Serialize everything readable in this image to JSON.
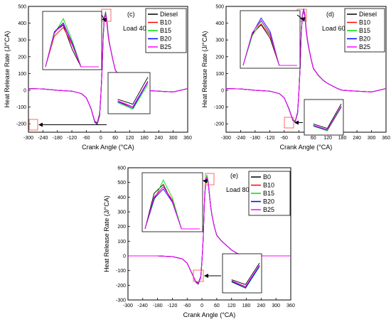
{
  "colors": {
    "Diesel": "#000000",
    "B0": "#000000",
    "B10": "#ff0000",
    "B15": "#00dd00",
    "B20": "#0000ff",
    "B25": "#ff00ff",
    "highlight": "#ff4444"
  },
  "chart_data": [
    {
      "type": "line",
      "panel_label": "(c)",
      "load_label": "Load 40%",
      "xlabel": "Crank Angle (°CA)",
      "ylabel": "Heat Release Rate (J/°CA)",
      "xlim": [
        -300,
        360
      ],
      "ylim": [
        -250,
        500
      ],
      "xticks": [
        "-300",
        "-240",
        "-180",
        "-120",
        "-60",
        "0",
        "60",
        "120",
        "180",
        "240",
        "300",
        "360"
      ],
      "yticks": [
        "-200",
        "-100",
        "0",
        "100",
        "200",
        "300",
        "400",
        "500"
      ],
      "legend": [
        "Diesel",
        "B10",
        "B15",
        "B20",
        "B25"
      ],
      "legend_position": "top-right",
      "x": [
        -300,
        -240,
        -180,
        -120,
        -80,
        -60,
        -40,
        -25,
        -15,
        -5,
        0,
        5,
        10,
        15,
        20,
        25,
        30,
        35,
        40,
        50,
        60,
        80,
        100,
        120,
        140,
        160,
        180,
        240,
        300,
        360
      ],
      "series": [
        {
          "name": "Diesel",
          "values": [
            10,
            8,
            0,
            -5,
            -20,
            -45,
            -110,
            -185,
            -195,
            -140,
            -30,
            120,
            330,
            440,
            455,
            400,
            330,
            280,
            250,
            180,
            120,
            80,
            60,
            40,
            25,
            10,
            0,
            -5,
            -10,
            10
          ]
        },
        {
          "name": "B10",
          "values": [
            10,
            8,
            0,
            -5,
            -20,
            -45,
            -110,
            -190,
            -200,
            -150,
            -35,
            110,
            320,
            430,
            450,
            410,
            340,
            285,
            250,
            180,
            120,
            80,
            60,
            40,
            25,
            10,
            0,
            -5,
            -10,
            10
          ]
        },
        {
          "name": "B15",
          "values": [
            10,
            8,
            0,
            -5,
            -20,
            -45,
            -112,
            -192,
            -205,
            -155,
            -40,
            105,
            310,
            435,
            470,
            420,
            345,
            290,
            252,
            182,
            121,
            81,
            60,
            40,
            25,
            10,
            0,
            -5,
            -10,
            10
          ]
        },
        {
          "name": "B20",
          "values": [
            10,
            8,
            0,
            -5,
            -20,
            -45,
            -112,
            -190,
            -203,
            -150,
            -38,
            112,
            325,
            440,
            460,
            415,
            340,
            287,
            251,
            181,
            120,
            80,
            60,
            40,
            25,
            10,
            0,
            -5,
            -10,
            10
          ]
        },
        {
          "name": "B25",
          "values": [
            10,
            8,
            0,
            -5,
            -20,
            -45,
            -110,
            -188,
            -200,
            -148,
            -36,
            110,
            322,
            438,
            458,
            412,
            338,
            286,
            250,
            180,
            120,
            80,
            60,
            40,
            25,
            10,
            0,
            -5,
            -10,
            10
          ]
        }
      ]
    },
    {
      "type": "line",
      "panel_label": "(d)",
      "load_label": "Load 60%",
      "xlabel": "Crank Angle (°CA)",
      "ylabel": "Heat Release Rate (J/°CA)",
      "xlim": [
        -300,
        360
      ],
      "ylim": [
        -250,
        500
      ],
      "xticks": [
        "-300",
        "-240",
        "-180",
        "-120",
        "-60",
        "0",
        "60",
        "120",
        "180",
        "240",
        "300",
        "360"
      ],
      "yticks": [
        "-200",
        "-100",
        "0",
        "100",
        "200",
        "300",
        "400",
        "500"
      ],
      "legend": [
        "Diesel",
        "B10",
        "B15",
        "B20",
        "B25"
      ],
      "legend_position": "top-right",
      "x": [
        -300,
        -240,
        -180,
        -120,
        -80,
        -60,
        -40,
        -25,
        -15,
        -5,
        0,
        5,
        10,
        15,
        20,
        25,
        30,
        35,
        40,
        50,
        60,
        80,
        100,
        120,
        140,
        160,
        180,
        240,
        300,
        360
      ],
      "series": [
        {
          "name": "Diesel",
          "values": [
            10,
            8,
            0,
            -5,
            -20,
            -45,
            -110,
            -175,
            -185,
            -130,
            -20,
            130,
            340,
            450,
            470,
            440,
            360,
            300,
            260,
            190,
            130,
            90,
            60,
            40,
            25,
            10,
            0,
            -5,
            -10,
            10
          ]
        },
        {
          "name": "B10",
          "values": [
            10,
            8,
            0,
            -5,
            -20,
            -45,
            -112,
            -178,
            -188,
            -135,
            -25,
            125,
            335,
            448,
            472,
            445,
            365,
            303,
            262,
            191,
            131,
            90,
            60,
            40,
            25,
            10,
            0,
            -5,
            -10,
            10
          ]
        },
        {
          "name": "B15",
          "values": [
            10,
            8,
            0,
            -5,
            -20,
            -45,
            -113,
            -180,
            -190,
            -138,
            -28,
            120,
            330,
            445,
            478,
            448,
            368,
            305,
            264,
            192,
            132,
            91,
            60,
            40,
            25,
            10,
            0,
            -5,
            -10,
            10
          ]
        },
        {
          "name": "B20",
          "values": [
            10,
            8,
            0,
            -5,
            -20,
            -45,
            -113,
            -179,
            -189,
            -136,
            -26,
            122,
            332,
            450,
            485,
            455,
            375,
            310,
            266,
            193,
            133,
            91,
            60,
            40,
            25,
            10,
            0,
            -5,
            -10,
            10
          ]
        },
        {
          "name": "B25",
          "values": [
            10,
            8,
            0,
            -5,
            -20,
            -45,
            -112,
            -178,
            -188,
            -135,
            -25,
            124,
            334,
            452,
            480,
            450,
            370,
            306,
            264,
            192,
            132,
            90,
            60,
            40,
            25,
            10,
            0,
            -5,
            -10,
            10
          ]
        }
      ]
    },
    {
      "type": "line",
      "panel_label": "(e)",
      "load_label": "Load 80%",
      "xlabel": "Crank Angle (°CA)",
      "ylabel": "Heat Release Rate (J/°CA)",
      "xlim": [
        -300,
        360
      ],
      "ylim": [
        -300,
        600
      ],
      "xticks": [
        "-300",
        "-240",
        "-180",
        "-120",
        "-60",
        "0",
        "60",
        "120",
        "180",
        "240",
        "300",
        "360"
      ],
      "yticks": [
        "-300",
        "-200",
        "-100",
        "0",
        "100",
        "200",
        "300",
        "400",
        "500",
        "600"
      ],
      "legend": [
        "B0",
        "B10",
        "B15",
        "B20",
        "B25"
      ],
      "legend_position": "top-right",
      "x": [
        -300,
        -240,
        -180,
        -120,
        -80,
        -60,
        -40,
        -25,
        -15,
        -5,
        0,
        5,
        10,
        15,
        20,
        25,
        30,
        35,
        40,
        50,
        60,
        80,
        100,
        120,
        140,
        160,
        180,
        240,
        300,
        360
      ],
      "series": [
        {
          "name": "B0",
          "values": [
            0,
            0,
            0,
            -5,
            -20,
            -50,
            -120,
            -175,
            -185,
            -140,
            -30,
            120,
            380,
            520,
            540,
            500,
            420,
            340,
            280,
            200,
            140,
            100,
            70,
            40,
            20,
            5,
            0,
            0,
            0,
            0
          ]
        },
        {
          "name": "B10",
          "values": [
            0,
            0,
            0,
            -5,
            -20,
            -50,
            -122,
            -178,
            -190,
            -145,
            -35,
            115,
            370,
            510,
            535,
            505,
            425,
            343,
            282,
            201,
            141,
            100,
            70,
            40,
            20,
            5,
            0,
            0,
            0,
            0
          ]
        },
        {
          "name": "B15",
          "values": [
            0,
            0,
            0,
            -5,
            -20,
            -50,
            -123,
            -180,
            -193,
            -148,
            -38,
            110,
            365,
            505,
            550,
            510,
            430,
            346,
            284,
            202,
            142,
            101,
            70,
            40,
            20,
            5,
            0,
            0,
            0,
            0
          ]
        },
        {
          "name": "B20",
          "values": [
            0,
            0,
            0,
            -5,
            -20,
            -50,
            -122,
            -179,
            -192,
            -146,
            -36,
            112,
            368,
            508,
            530,
            500,
            422,
            341,
            281,
            200,
            140,
            100,
            70,
            40,
            20,
            5,
            0,
            0,
            0,
            0
          ]
        },
        {
          "name": "B25",
          "values": [
            0,
            0,
            0,
            -5,
            -20,
            -50,
            -121,
            -177,
            -189,
            -144,
            -34,
            114,
            372,
            512,
            535,
            502,
            423,
            342,
            281,
            200,
            140,
            100,
            70,
            40,
            20,
            5,
            0,
            0,
            0,
            0
          ]
        }
      ]
    }
  ]
}
